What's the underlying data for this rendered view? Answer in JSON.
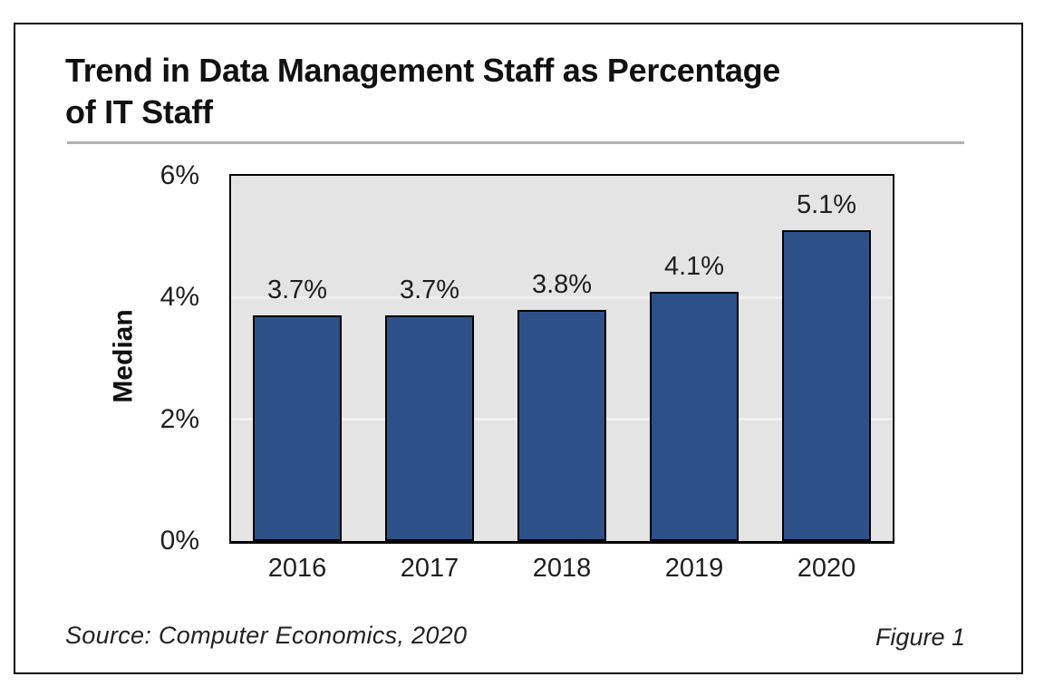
{
  "figure": {
    "title_lines": [
      "Trend in Data Management Staff as Percentage",
      "of IT Staff"
    ],
    "source": "Source: Computer Economics, 2020",
    "figure_label": "Figure 1"
  },
  "chart_data": {
    "type": "bar",
    "title": "Trend in Data Management Staff as Percentage of IT Staff",
    "categories": [
      "2016",
      "2017",
      "2018",
      "2019",
      "2020"
    ],
    "values": [
      3.7,
      3.7,
      3.8,
      4.1,
      5.1
    ],
    "data_labels": [
      "3.7%",
      "3.7%",
      "3.8%",
      "4.1%",
      "5.1%"
    ],
    "xlabel": "",
    "ylabel": "Median",
    "ylim": [
      0,
      6
    ],
    "yticks": [
      {
        "value": 0,
        "label": "0%"
      },
      {
        "value": 2,
        "label": "2%"
      },
      {
        "value": 4,
        "label": "4%"
      },
      {
        "value": 6,
        "label": "6%"
      }
    ],
    "gridlines": [
      2,
      4
    ],
    "grid": "horizontal-subtle",
    "legend": "none",
    "colors": {
      "bar_fill": "#2d5089",
      "bar_border": "#000000",
      "plot_bg": "#e4e4e4",
      "gridline": "#f0f0f0",
      "frame_border": "#0a0a0a",
      "title_rule": "#b2b2b2",
      "text": "#1f1f1f"
    }
  }
}
